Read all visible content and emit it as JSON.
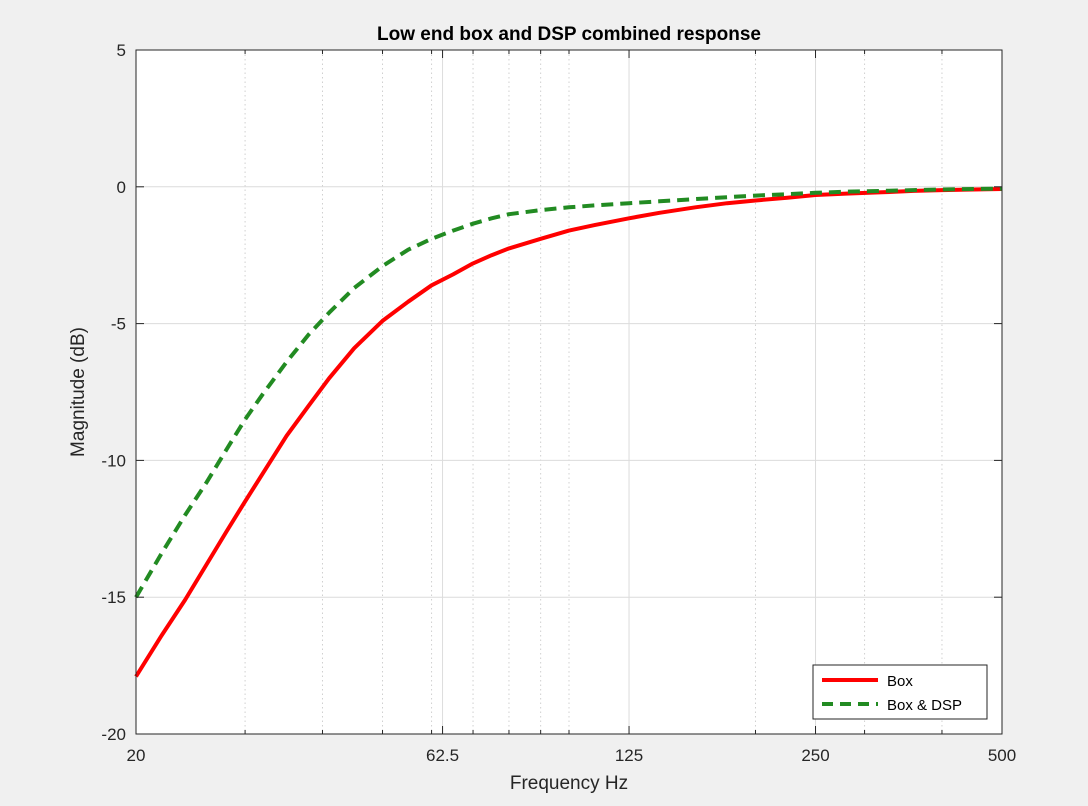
{
  "chart_data": {
    "type": "line",
    "title": "Low end box and DSP combined response",
    "xlabel": "Frequency Hz",
    "ylabel": "Magnitude (dB)",
    "xscale": "log",
    "xlim": [
      20,
      500
    ],
    "ylim": [
      -20,
      5
    ],
    "xticks": [
      20,
      62.5,
      125,
      250,
      500
    ],
    "xtick_labels": [
      "20",
      "62.5",
      "125",
      "250",
      "500"
    ],
    "yticks": [
      -20,
      -15,
      -10,
      -5,
      0,
      5
    ],
    "ytick_labels": [
      "-20",
      "-15",
      "-10",
      "-5",
      "0",
      "5"
    ],
    "grid": true,
    "legend_location": "bottom-right",
    "colors": {
      "box": "#ff0000",
      "box_dsp": "#228b22"
    },
    "series": [
      {
        "name": "Box",
        "style": "solid",
        "color": "#ff0000",
        "x": [
          20,
          22,
          24,
          26,
          28,
          30,
          32,
          35,
          38,
          41,
          45,
          50,
          55,
          60,
          65,
          70,
          75,
          80,
          90,
          100,
          110,
          125,
          140,
          160,
          180,
          200,
          225,
          250,
          280,
          320,
          360,
          400,
          450,
          500
        ],
        "y": [
          -17.9,
          -16.4,
          -15.1,
          -13.8,
          -12.6,
          -11.5,
          -10.5,
          -9.1,
          -8.0,
          -7.0,
          -5.9,
          -4.9,
          -4.2,
          -3.6,
          -3.2,
          -2.8,
          -2.5,
          -2.25,
          -1.9,
          -1.6,
          -1.4,
          -1.15,
          -0.95,
          -0.75,
          -0.6,
          -0.5,
          -0.4,
          -0.3,
          -0.25,
          -0.2,
          -0.15,
          -0.12,
          -0.1,
          -0.08
        ]
      },
      {
        "name": "Box & DSP",
        "style": "dashed",
        "color": "#228b22",
        "x": [
          20,
          22,
          24,
          26,
          28,
          30,
          32,
          35,
          38,
          41,
          45,
          50,
          55,
          60,
          65,
          70,
          75,
          80,
          90,
          100,
          110,
          125,
          140,
          160,
          180,
          200,
          225,
          250,
          280,
          320,
          360,
          400,
          450,
          500
        ],
        "y": [
          -15.0,
          -13.4,
          -12.0,
          -10.8,
          -9.6,
          -8.5,
          -7.6,
          -6.4,
          -5.4,
          -4.6,
          -3.7,
          -2.9,
          -2.3,
          -1.9,
          -1.6,
          -1.35,
          -1.15,
          -1.0,
          -0.85,
          -0.75,
          -0.68,
          -0.6,
          -0.53,
          -0.45,
          -0.38,
          -0.32,
          -0.27,
          -0.22,
          -0.18,
          -0.15,
          -0.12,
          -0.1,
          -0.08,
          -0.07
        ]
      }
    ]
  }
}
